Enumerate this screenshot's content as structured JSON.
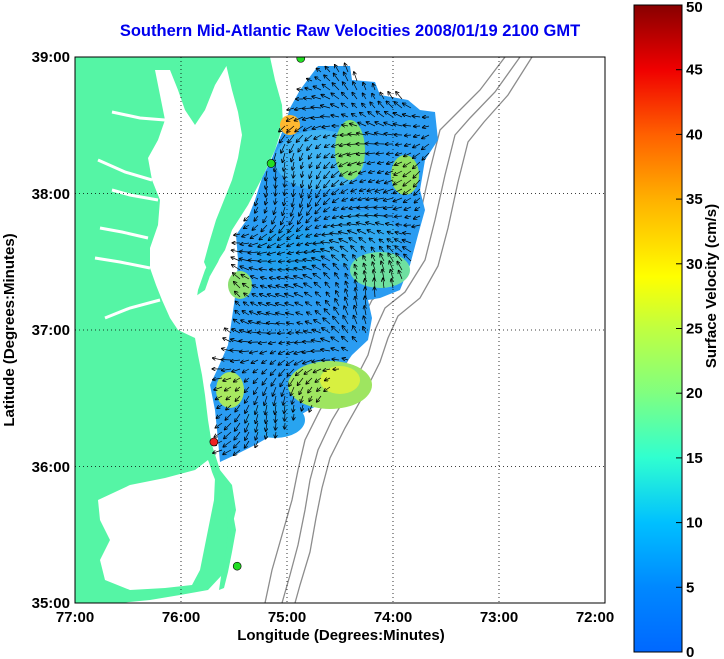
{
  "title": "Southern Mid-Atlantic Raw Velocities 2008/01/19 2100 GMT",
  "map": {
    "xlabel": "Longitude (Degrees:Minutes)",
    "ylabel": "Latitude (Degrees:Minutes)",
    "lon_range": [
      -77,
      -72
    ],
    "lat_range": [
      35,
      39
    ],
    "x_ticks": [
      "77:00",
      "76:00",
      "75:00",
      "74:00",
      "73:00",
      "72:00"
    ],
    "y_ticks": [
      "39:00",
      "38:00",
      "37:00",
      "36:00",
      "35:00"
    ],
    "grid": "dotted",
    "land_color": "#55f5a5",
    "water_color": "#ffffff",
    "bathymetry_color": "#8c8c8c",
    "stations": [
      {
        "lon": -74.87,
        "lat": 38.99,
        "color": "#22dd22"
      },
      {
        "lon": -75.15,
        "lat": 38.22,
        "color": "#22dd22"
      },
      {
        "lon": -75.69,
        "lat": 36.18,
        "color": "#ee2222"
      },
      {
        "lon": -75.47,
        "lat": 35.27,
        "color": "#22dd22"
      }
    ]
  },
  "colorbar": {
    "label": "Surface Velocity (cm/s)",
    "range": [
      0,
      50
    ],
    "ticks": [
      "0",
      "5",
      "10",
      "15",
      "20",
      "25",
      "30",
      "35",
      "40",
      "45",
      "50"
    ],
    "colormap": "jet"
  }
}
